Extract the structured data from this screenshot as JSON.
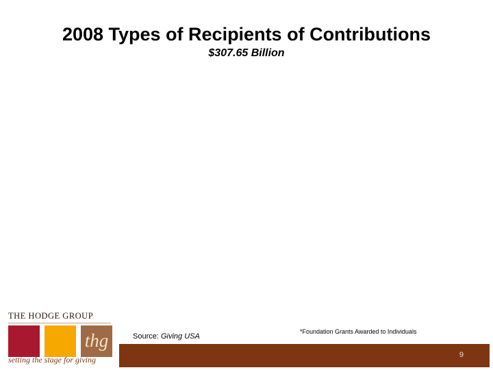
{
  "slide": {
    "title": "2008 Types of Recipients of Contributions",
    "subtitle": "$307.65 Billion",
    "source_label": "Source: ",
    "source_name": "Giving USA",
    "footnote": "*Foundation Grants Awarded to Individuals",
    "page_number": "9"
  },
  "logo": {
    "name": "THE HODGE GROUP",
    "monogram": "thg",
    "tagline": "setting the stage for giving"
  },
  "colors": {
    "footer_bar": "#7d3611",
    "logo_red": "#a8192f",
    "logo_orange": "#f6a800",
    "logo_brown": "#a06a47"
  }
}
